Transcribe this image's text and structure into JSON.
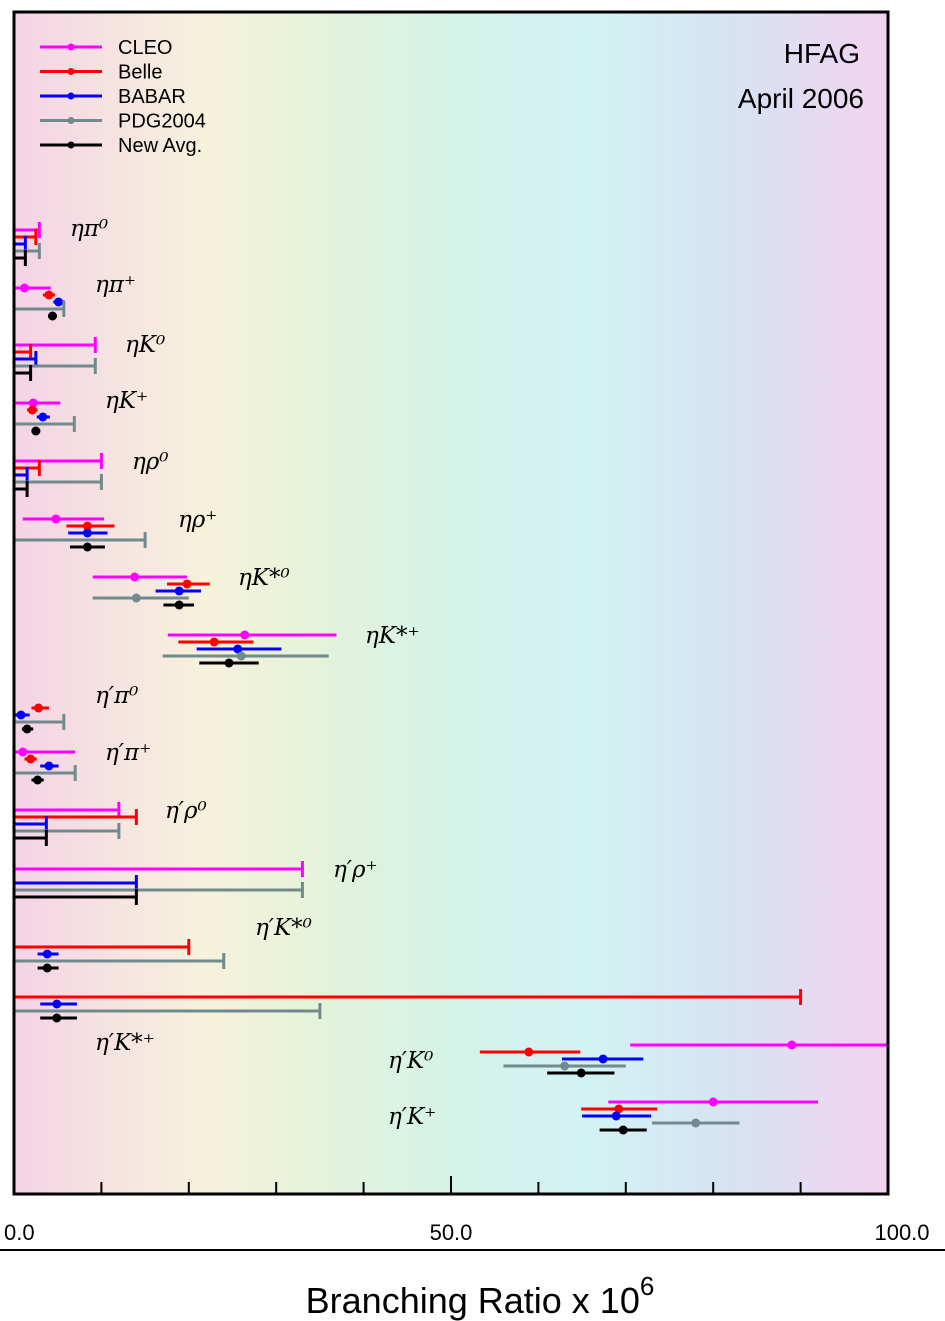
{
  "chart_data": {
    "type": "scatter",
    "orientation": "horizontal-error-bars",
    "xlabel": "Branching Ratio x 10",
    "xlabel_superscript": "6",
    "xlim": [
      0,
      100
    ],
    "x_tick_labels": [
      {
        "value": 0,
        "text": "0.0"
      },
      {
        "value": 50,
        "text": "50.0"
      },
      {
        "value": 100,
        "text": "100.0"
      }
    ],
    "x_minor_ticks": [
      10,
      20,
      30,
      40,
      60,
      70,
      80,
      90
    ],
    "annotation": [
      "HFAG",
      "April 2006"
    ],
    "legend_position": "top-left",
    "series": [
      {
        "name": "CLEO",
        "color": "#ff00ff"
      },
      {
        "name": "Belle",
        "color": "#ff0000"
      },
      {
        "name": "BABAR",
        "color": "#0000ff"
      },
      {
        "name": "PDG2004",
        "color": "#708a8e"
      },
      {
        "name": "New Avg.",
        "color": "#000000"
      }
    ],
    "groups": [
      {
        "label": "ηπ⁰",
        "measurements": [
          {
            "series": "CLEO",
            "limit": 2.9
          },
          {
            "series": "Belle",
            "limit": 2.5
          },
          {
            "series": "BABAR",
            "limit": 1.3
          },
          {
            "series": "PDG2004",
            "limit": 2.9
          },
          {
            "series": "New Avg.",
            "limit": 1.3
          }
        ]
      },
      {
        "label": "ηπ⁺",
        "measurements": [
          {
            "series": "CLEO",
            "value": 1.2,
            "low": 0,
            "high": 4.2
          },
          {
            "series": "Belle",
            "value": 4.0,
            "low": 3.3,
            "high": 4.7
          },
          {
            "series": "BABAR",
            "value": 5.1,
            "low": 4.5,
            "high": 5.8
          },
          {
            "series": "PDG2004",
            "limit": 5.7
          },
          {
            "series": "New Avg.",
            "value": 4.4,
            "low": 3.9,
            "high": 4.9
          }
        ]
      },
      {
        "label": "ηK⁰",
        "measurements": [
          {
            "series": "CLEO",
            "limit": 9.3
          },
          {
            "series": "Belle",
            "limit": 1.9
          },
          {
            "series": "BABAR",
            "limit": 2.5
          },
          {
            "series": "PDG2004",
            "limit": 9.3
          },
          {
            "series": "New Avg.",
            "limit": 1.9
          }
        ]
      },
      {
        "label": "ηK⁺",
        "measurements": [
          {
            "series": "CLEO",
            "value": 2.2,
            "low": 0,
            "high": 5.3
          },
          {
            "series": "Belle",
            "value": 2.1,
            "low": 1.5,
            "high": 2.7
          },
          {
            "series": "BABAR",
            "value": 3.3,
            "low": 2.6,
            "high": 4.1
          },
          {
            "series": "PDG2004",
            "limit": 6.9
          },
          {
            "series": "New Avg.",
            "value": 2.5,
            "low": 2.0,
            "high": 3.0
          }
        ]
      },
      {
        "label": "ηρ⁰",
        "measurements": [
          {
            "series": "CLEO",
            "limit": 10.0
          },
          {
            "series": "Belle",
            "limit": 2.9
          },
          {
            "series": "BABAR",
            "limit": 1.5
          },
          {
            "series": "PDG2004",
            "limit": 10.0
          },
          {
            "series": "New Avg.",
            "limit": 1.5
          }
        ]
      },
      {
        "label": "ηρ⁺",
        "measurements": [
          {
            "series": "CLEO",
            "value": 4.8,
            "low": 1.0,
            "high": 10.3
          },
          {
            "series": "Belle",
            "value": 8.4,
            "low": 6.0,
            "high": 11.5
          },
          {
            "series": "BABAR",
            "value": 8.4,
            "low": 6.2,
            "high": 10.7
          },
          {
            "series": "PDG2004",
            "limit": 15.0
          },
          {
            "series": "New Avg.",
            "value": 8.4,
            "low": 6.4,
            "high": 10.4
          }
        ]
      },
      {
        "label": "ηK*⁰",
        "measurements": [
          {
            "series": "CLEO",
            "value": 13.8,
            "low": 9.0,
            "high": 19.8
          },
          {
            "series": "Belle",
            "value": 19.8,
            "low": 17.5,
            "high": 22.4
          },
          {
            "series": "BABAR",
            "value": 18.9,
            "low": 16.2,
            "high": 21.4
          },
          {
            "series": "PDG2004",
            "value": 14.0,
            "low": 9.0,
            "high": 20.0
          },
          {
            "series": "New Avg.",
            "value": 18.9,
            "low": 17.1,
            "high": 20.6
          }
        ]
      },
      {
        "label": "ηK*⁺",
        "measurements": [
          {
            "series": "CLEO",
            "value": 26.4,
            "low": 17.6,
            "high": 36.9
          },
          {
            "series": "Belle",
            "value": 22.9,
            "low": 18.8,
            "high": 27.4
          },
          {
            "series": "BABAR",
            "value": 25.6,
            "low": 20.9,
            "high": 30.6
          },
          {
            "series": "PDG2004",
            "value": 26.0,
            "low": 17.0,
            "high": 36.0
          },
          {
            "series": "New Avg.",
            "value": 24.6,
            "low": 21.2,
            "high": 28.0
          }
        ]
      },
      {
        "label": "η′π⁰",
        "measurements": [
          {
            "series": "Belle",
            "value": 2.8,
            "low": 2.0,
            "high": 4.0
          },
          {
            "series": "BABAR",
            "value": 0.8,
            "low": 0.1,
            "high": 1.8
          },
          {
            "series": "PDG2004",
            "limit": 5.7
          },
          {
            "series": "New Avg.",
            "value": 1.5,
            "low": 0.9,
            "high": 2.2
          }
        ]
      },
      {
        "label": "η′π⁺",
        "measurements": [
          {
            "series": "CLEO",
            "value": 1.0,
            "low": 0,
            "high": 7.0
          },
          {
            "series": "Belle",
            "value": 1.9,
            "low": 1.2,
            "high": 2.6
          },
          {
            "series": "BABAR",
            "value": 4.0,
            "low": 3.0,
            "high": 5.1
          },
          {
            "series": "PDG2004",
            "limit": 7.0
          },
          {
            "series": "New Avg.",
            "value": 2.7,
            "low": 2.0,
            "high": 3.4
          }
        ]
      },
      {
        "label": "η′ρ⁰",
        "measurements": [
          {
            "series": "CLEO",
            "limit": 12.0
          },
          {
            "series": "Belle",
            "limit": 14.0
          },
          {
            "series": "BABAR",
            "limit": 3.7
          },
          {
            "series": "PDG2004",
            "limit": 12.0
          },
          {
            "series": "New Avg.",
            "limit": 3.7
          }
        ]
      },
      {
        "label": "η′ρ⁺",
        "measurements": [
          {
            "series": "CLEO",
            "limit": 33.0
          },
          {
            "series": "BABAR",
            "limit": 14.0
          },
          {
            "series": "PDG2004",
            "limit": 33.0
          },
          {
            "series": "New Avg.",
            "limit": 14.0
          }
        ]
      },
      {
        "label": "η′K*⁰",
        "measurements": [
          {
            "series": "Belle",
            "limit": 20.0
          },
          {
            "series": "BABAR",
            "value": 3.8,
            "low": 2.7,
            "high": 5.1
          },
          {
            "series": "PDG2004",
            "limit": 24.0
          },
          {
            "series": "New Avg.",
            "value": 3.8,
            "low": 2.7,
            "high": 5.1
          }
        ]
      },
      {
        "label": "η′K*⁺",
        "measurements": [
          {
            "series": "Belle",
            "limit": 90.0
          },
          {
            "series": "BABAR",
            "value": 4.9,
            "low": 3.0,
            "high": 7.2
          },
          {
            "series": "PDG2004",
            "limit": 35.0
          },
          {
            "series": "New Avg.",
            "value": 4.9,
            "low": 3.0,
            "high": 7.2
          }
        ]
      },
      {
        "label": "η′K⁰",
        "measurements": [
          {
            "series": "CLEO",
            "value": 89.0,
            "low": 70.5,
            "high": 100.0
          },
          {
            "series": "Belle",
            "value": 58.9,
            "low": 53.3,
            "high": 64.8
          },
          {
            "series": "BABAR",
            "value": 67.4,
            "low": 62.7,
            "high": 72.0
          },
          {
            "series": "PDG2004",
            "value": 63.0,
            "low": 56.0,
            "high": 70.0
          },
          {
            "series": "New Avg.",
            "value": 64.9,
            "low": 61.0,
            "high": 68.7
          }
        ]
      },
      {
        "label": "η′K⁺",
        "measurements": [
          {
            "series": "CLEO",
            "value": 80.0,
            "low": 68.0,
            "high": 92.0
          },
          {
            "series": "Belle",
            "value": 69.2,
            "low": 64.9,
            "high": 73.6
          },
          {
            "series": "BABAR",
            "value": 68.9,
            "low": 65.0,
            "high": 72.9
          },
          {
            "series": "PDG2004",
            "value": 78.0,
            "low": 73.0,
            "high": 83.0
          },
          {
            "series": "New Avg.",
            "value": 69.7,
            "low": 67.0,
            "high": 72.4
          }
        ]
      }
    ]
  }
}
